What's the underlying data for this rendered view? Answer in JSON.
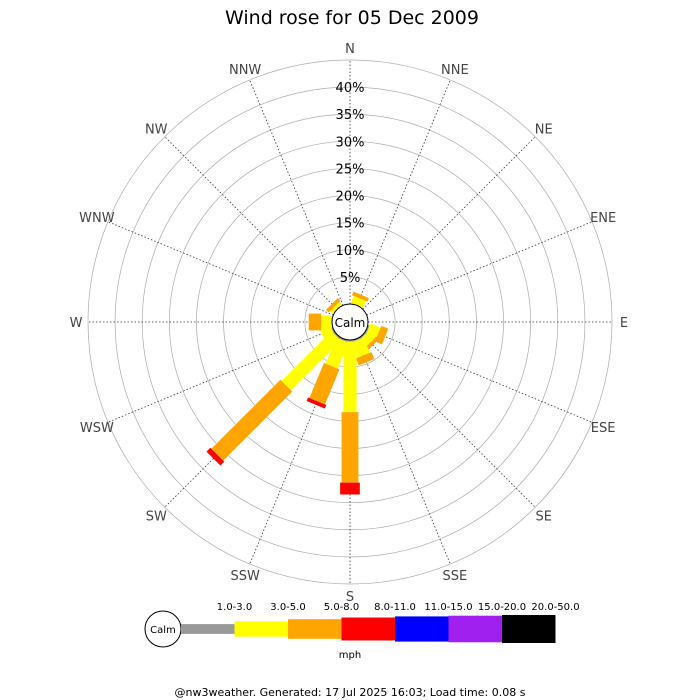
{
  "chart_data": {
    "type": "wind_rose",
    "title": "Wind rose for 05 Dec 2009",
    "directions": [
      "N",
      "NNE",
      "NE",
      "ENE",
      "E",
      "ESE",
      "SE",
      "SSE",
      "S",
      "SSW",
      "SW",
      "WSW",
      "W",
      "WNW",
      "NW",
      "NNW"
    ],
    "radial_ticks": [
      "5%",
      "10%",
      "15%",
      "20%",
      "25%",
      "30%",
      "35%",
      "40%"
    ],
    "radial_max": 45,
    "calm_label": "Calm",
    "speed_unit": "mph",
    "bins": [
      {
        "label": "1.0-3.0",
        "color": "#999999"
      },
      {
        "label": "3.0-5.0",
        "color": "#ffff00"
      },
      {
        "label": "5.0-8.0",
        "color": "#ffa500"
      },
      {
        "label": "8.0-11.0",
        "color": "#ff0000"
      },
      {
        "label": "11.0-15.0",
        "color": "#0000ff"
      },
      {
        "label": "15.0-20.0",
        "color": "#a020f0"
      },
      {
        "label": "20.0-50.0",
        "color": "#000000"
      }
    ],
    "values": {
      "N": [
        0,
        0,
        0,
        0,
        0,
        0,
        0
      ],
      "NNE": [
        0,
        1.4,
        0.7,
        0,
        0,
        0,
        0
      ],
      "NE": [
        0,
        0,
        0,
        0,
        0,
        0,
        0
      ],
      "ENE": [
        0,
        0,
        0,
        0,
        0,
        0,
        0
      ],
      "E": [
        0,
        0,
        0,
        0,
        0,
        0,
        0
      ],
      "ESE": [
        0.3,
        2.0,
        1.4,
        0,
        0,
        0,
        0
      ],
      "SE": [
        0.3,
        1.7,
        0.7,
        0,
        0,
        0,
        0
      ],
      "SSE": [
        0.3,
        3.0,
        1.4,
        0,
        0,
        0,
        0
      ],
      "S": [
        0.3,
        13.0,
        13.0,
        2.2,
        0,
        0,
        0
      ],
      "SSW": [
        0.3,
        5.2,
        7.0,
        0.7,
        0,
        0,
        0
      ],
      "SW": [
        0.3,
        13.0,
        18.0,
        1.0,
        0,
        0,
        0
      ],
      "WSW": [
        0.3,
        2.0,
        0,
        0,
        0,
        0,
        0
      ],
      "W": [
        0,
        2.0,
        2.3,
        0,
        0,
        0,
        0
      ],
      "WNW": [
        0,
        0,
        0,
        0,
        0,
        0,
        0
      ],
      "NW": [
        0,
        0.7,
        0.7,
        0,
        0,
        0,
        0
      ],
      "NNW": [
        0,
        0,
        0,
        0,
        0,
        0,
        0
      ]
    }
  },
  "footer": "@nw3weather. Generated: 17 Jul 2025 16:03; Load time: 0.08 s"
}
